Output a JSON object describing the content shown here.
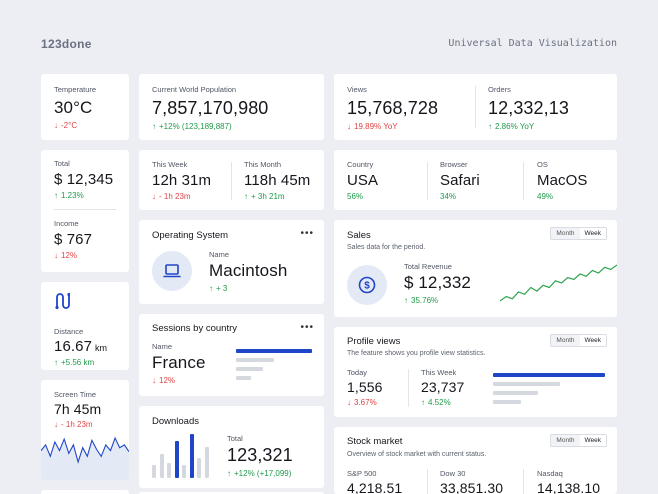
{
  "brand": {
    "logo": "123done",
    "tagline": "Universal Data Visualization"
  },
  "temperature": {
    "label": "Temperature",
    "value": "30°C",
    "delta": "-2°C"
  },
  "world_population": {
    "label": "Current World Population",
    "value": "7,857,170,980",
    "delta": "+12% (123,189,887)"
  },
  "views": {
    "label": "Views",
    "value": "15,768,728",
    "delta": "19.89% YoY"
  },
  "orders": {
    "label": "Orders",
    "value": "12,332,13",
    "delta": "2.86% YoY"
  },
  "total": {
    "label": "Total",
    "value": "$ 12,345",
    "delta": "1.23%"
  },
  "income": {
    "label": "Income",
    "value": "$ 767",
    "delta": "12%"
  },
  "this_week": {
    "label": "This Week",
    "value": "12h 31m",
    "delta": "- 1h 23m"
  },
  "this_month": {
    "label": "This Month",
    "value": "118h 45m",
    "delta": "+ 3h 21m"
  },
  "country": {
    "label": "Country",
    "value": "USA",
    "share": "56%"
  },
  "browser": {
    "label": "Browser",
    "value": "Safari",
    "share": "34%"
  },
  "os": {
    "label": "OS",
    "value": "MacOS",
    "share": "49%"
  },
  "operating_system": {
    "title": "Operating System",
    "name_label": "Name",
    "value": "Macintosh",
    "delta": "+ 3",
    "icon": "laptop-icon"
  },
  "distance": {
    "label": "Distance",
    "value": "16.67",
    "unit": "km",
    "delta": "+5.56 km",
    "icon": "route-icon"
  },
  "sales": {
    "title": "Sales",
    "subtitle": "Sales data for the period.",
    "toggle": [
      "Month",
      "Week"
    ],
    "active": "Week",
    "metric_label": "Total Revenue",
    "value": "$ 12,332",
    "delta": "35.76%",
    "icon": "dollar-coin-icon",
    "sparkline": [
      2,
      3,
      2.5,
      4,
      3.5,
      5,
      4.2,
      5.5,
      5,
      6.5,
      6,
      7.2,
      6.8,
      8,
      7.5,
      8.8,
      8.2,
      9.5,
      9,
      10
    ]
  },
  "sessions": {
    "title": "Sessions by country",
    "name_label": "Name",
    "value": "France",
    "delta": "12%",
    "bars": [
      1.0,
      0.5,
      0.35,
      0.2
    ]
  },
  "profile_views": {
    "title": "Profile views",
    "subtitle": "The feature shows you profile view statistics.",
    "toggle": [
      "Month",
      "Week"
    ],
    "active": "Week",
    "today": {
      "label": "Today",
      "value": "1,556",
      "delta": "3.67%"
    },
    "week": {
      "label": "This Week",
      "value": "23,737",
      "delta": "4.52%"
    },
    "bars": [
      1.0,
      0.6,
      0.4,
      0.25
    ]
  },
  "screen_time": {
    "label": "Screen Time",
    "value": "7h 45m",
    "delta": "- 1h 23m",
    "wave": [
      5,
      6,
      4,
      6.5,
      5,
      7,
      4.5,
      6,
      3,
      5.5,
      4,
      6.8,
      5.2,
      4,
      6,
      5,
      7.2,
      5.5,
      6,
      4.8
    ]
  },
  "downloads": {
    "title": "Downloads",
    "label": "Total",
    "value": "123,321",
    "delta": "+12% (+17,099)",
    "bars": [
      0.3,
      0.55,
      0.35,
      0.85,
      0.3,
      1.0,
      0.45,
      0.7
    ]
  },
  "stock": {
    "title": "Stock market",
    "subtitle": "Overview of stock market with current status.",
    "toggle": [
      "Month",
      "Week"
    ],
    "active": "Week",
    "items": [
      {
        "label": "S&P 500",
        "value": "4,218.51"
      },
      {
        "label": "Dow 30",
        "value": "33,851.30"
      },
      {
        "label": "Nasdaq",
        "value": "14,138.10"
      }
    ]
  },
  "colors": {
    "accent": "#1f46c8",
    "up": "#1f9a4a",
    "down": "#e14444",
    "chart_green": "#2ea44f"
  }
}
